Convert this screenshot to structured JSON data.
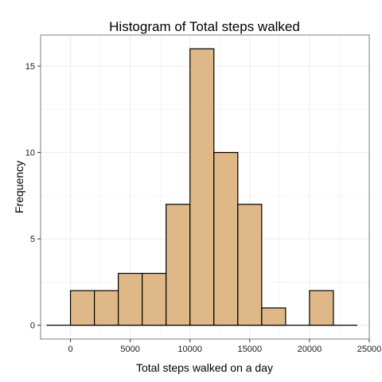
{
  "chart_data": {
    "type": "bar",
    "title": "Histogram of Total steps walked",
    "xlabel": "Total steps walked on a day",
    "ylabel": "Frequency",
    "x_ticks": [
      0,
      5000,
      10000,
      15000,
      20000,
      25000
    ],
    "y_ticks": [
      0,
      5,
      10,
      15
    ],
    "xlim": [
      -2500,
      25000
    ],
    "ylim": [
      -0.8,
      16.8
    ],
    "baseline_range": [
      -2000,
      24000
    ],
    "bins": [
      {
        "start": 0,
        "end": 2000,
        "count": 2
      },
      {
        "start": 2000,
        "end": 4000,
        "count": 2
      },
      {
        "start": 4000,
        "end": 6000,
        "count": 3
      },
      {
        "start": 6000,
        "end": 8000,
        "count": 3
      },
      {
        "start": 8000,
        "end": 10000,
        "count": 7
      },
      {
        "start": 10000,
        "end": 12000,
        "count": 16
      },
      {
        "start": 12000,
        "end": 14000,
        "count": 10
      },
      {
        "start": 14000,
        "end": 16000,
        "count": 7
      },
      {
        "start": 16000,
        "end": 18000,
        "count": 1
      },
      {
        "start": 18000,
        "end": 20000,
        "count": 0
      },
      {
        "start": 20000,
        "end": 22000,
        "count": 2
      }
    ],
    "bar_fill": "#deb887",
    "bar_stroke": "#000000",
    "grid": true,
    "grid_color": "#ebebeb",
    "panel_border_color": "#7f7f7f"
  }
}
